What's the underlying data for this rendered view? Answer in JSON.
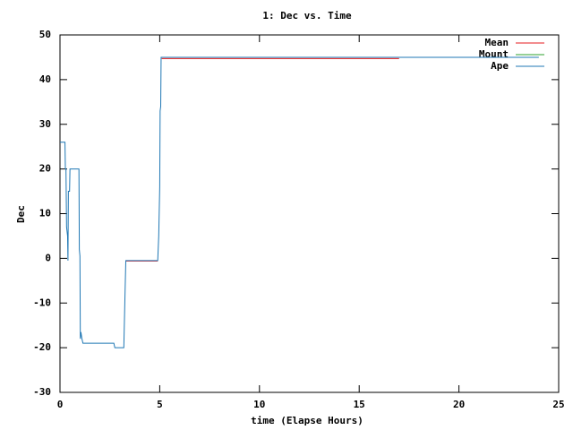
{
  "chart_data": {
    "type": "line",
    "title": "1: Dec vs. Time",
    "xlabel": "time (Elapse Hours)",
    "ylabel": "Dec",
    "xlim": [
      0,
      25
    ],
    "ylim": [
      -30,
      50
    ],
    "xticks": [
      0,
      5,
      10,
      15,
      20,
      25
    ],
    "yticks": [
      -30,
      -20,
      -10,
      0,
      10,
      20,
      30,
      40,
      50
    ],
    "grid": false,
    "legend": "top-right",
    "series": [
      {
        "name": "Mean",
        "color": "#e41a1c",
        "x": [
          3.3,
          4.9,
          null,
          5.1,
          17
        ],
        "values": [
          -0.6,
          -0.6,
          null,
          44.7,
          44.7
        ]
      },
      {
        "name": "Mount",
        "color": "#2ca02c",
        "x": [
          5.07,
          24
        ],
        "values": [
          45,
          45
        ]
      },
      {
        "name": "Ape",
        "color": "#1f77b4",
        "x": [
          0,
          0.25,
          0.27,
          0.3,
          0.33,
          0.38,
          0.4,
          0.42,
          0.48,
          0.5,
          0.95,
          0.97,
          1.0,
          1.02,
          1.05,
          1.1,
          1.15,
          2.7,
          2.75,
          3.2,
          3.25,
          3.3,
          4.9,
          4.95,
          5.0,
          5.02,
          5.05,
          5.07,
          24
        ],
        "values": [
          26,
          26,
          20,
          20,
          7,
          5,
          -0.5,
          15,
          15,
          20,
          20,
          2,
          0.5,
          -18,
          -16.5,
          -18,
          -19,
          -19,
          -20,
          -20,
          -10,
          -0.5,
          -0.5,
          5,
          16,
          33,
          34,
          45,
          45
        ]
      }
    ]
  }
}
